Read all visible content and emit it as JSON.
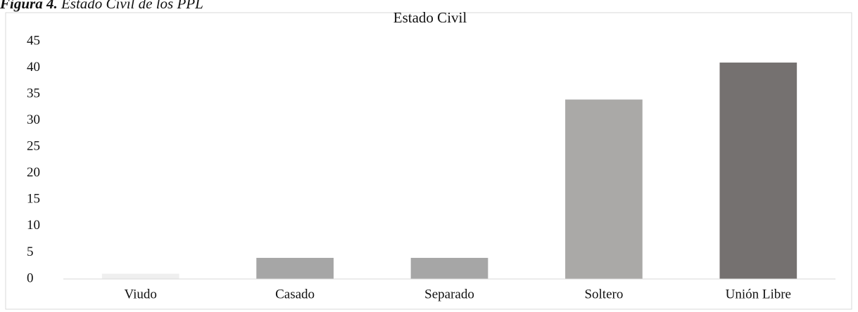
{
  "chart_data": {
    "type": "bar",
    "caption_label": "Figura 4.",
    "caption": "Estado Civil de los PPL",
    "title": "Estado Civil",
    "categories": [
      "Viudo",
      "Casado",
      "Separado",
      "Soltero",
      "Unión Libre"
    ],
    "values": [
      1,
      4,
      4,
      34,
      41
    ],
    "colors": [
      "#efefef",
      "#a6a6a6",
      "#a6a6a6",
      "#aaa9a7",
      "#757170"
    ],
    "ylim": [
      0,
      45
    ],
    "yticks": [
      0,
      5,
      10,
      15,
      20,
      25,
      30,
      35,
      40,
      45
    ],
    "grid": false
  }
}
